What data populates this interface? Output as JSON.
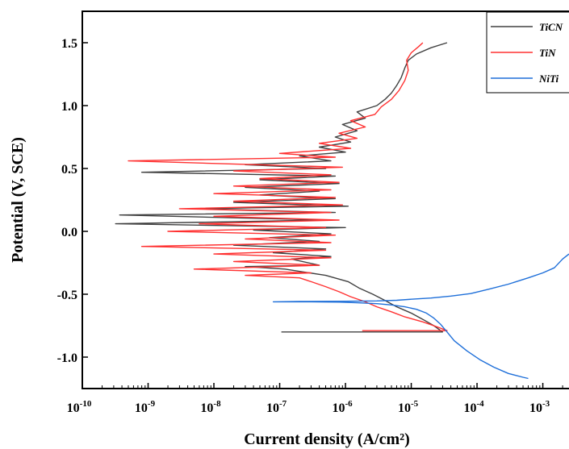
{
  "chart_data": {
    "type": "line",
    "xlabel": "Current density (A/cm²)",
    "ylabel": "Potential (V, SCE)",
    "x_scale": "log",
    "xlim": [
      1e-10,
      0.0025
    ],
    "ylim": [
      -1.25,
      1.75
    ],
    "x_ticks": [
      {
        "value": 1e-10,
        "label_base": "10",
        "label_exp": "-10"
      },
      {
        "value": 1e-09,
        "label_base": "10",
        "label_exp": "-9"
      },
      {
        "value": 1e-08,
        "label_base": "10",
        "label_exp": "-8"
      },
      {
        "value": 1e-07,
        "label_base": "10",
        "label_exp": "-7"
      },
      {
        "value": 1e-06,
        "label_base": "10",
        "label_exp": "-6"
      },
      {
        "value": 1e-05,
        "label_base": "10",
        "label_exp": "-5"
      },
      {
        "value": 0.0001,
        "label_base": "10",
        "label_exp": "-4"
      },
      {
        "value": 0.001,
        "label_base": "10",
        "label_exp": "-3"
      }
    ],
    "y_ticks": [
      {
        "value": -1.0,
        "label": "-1.0"
      },
      {
        "value": -0.5,
        "label": "-0.5"
      },
      {
        "value": 0.0,
        "label": "0.0"
      },
      {
        "value": 0.5,
        "label": "0.5"
      },
      {
        "value": 1.0,
        "label": "1.0"
      },
      {
        "value": 1.5,
        "label": "1.5"
      }
    ],
    "legend_position": "top-right",
    "grid": false,
    "series": [
      {
        "name": "TiCN",
        "color": "#404040",
        "points": [
          [
            1.06e-07,
            -0.8
          ],
          [
            1.8e-06,
            -0.8
          ],
          [
            3e-05,
            -0.8
          ],
          [
            2.2e-05,
            -0.75
          ],
          [
            1.5e-05,
            -0.7
          ],
          [
            1e-05,
            -0.65
          ],
          [
            6e-06,
            -0.6
          ],
          [
            4e-06,
            -0.55
          ],
          [
            2.6e-06,
            -0.5
          ],
          [
            1.6e-06,
            -0.45
          ],
          [
            1.1e-06,
            -0.4
          ],
          [
            5e-07,
            -0.35
          ],
          [
            1.2e-07,
            -0.3
          ],
          [
            3e-08,
            -0.28
          ],
          [
            4e-07,
            -0.27
          ],
          [
            1.5e-07,
            -0.22
          ],
          [
            6e-07,
            -0.2
          ],
          [
            8e-08,
            -0.17
          ],
          [
            5e-07,
            -0.14
          ],
          [
            2e-08,
            -0.11
          ],
          [
            4e-07,
            -0.08
          ],
          [
            7e-08,
            -0.05
          ],
          [
            6e-07,
            -0.02
          ],
          [
            4e-08,
            0.01
          ],
          [
            1e-06,
            0.03
          ],
          [
            3.2e-10,
            0.06
          ],
          [
            5e-07,
            0.09
          ],
          [
            3.7e-10,
            0.13
          ],
          [
            7e-07,
            0.15
          ],
          [
            6e-09,
            0.18
          ],
          [
            1.1e-06,
            0.2
          ],
          [
            2e-08,
            0.23
          ],
          [
            7e-07,
            0.26
          ],
          [
            5e-08,
            0.29
          ],
          [
            4e-07,
            0.32
          ],
          [
            3e-08,
            0.35
          ],
          [
            8e-07,
            0.38
          ],
          [
            5e-08,
            0.41
          ],
          [
            7e-07,
            0.44
          ],
          [
            8e-10,
            0.47
          ],
          [
            5e-07,
            0.5
          ],
          [
            3e-08,
            0.53
          ],
          [
            6e-07,
            0.56
          ],
          [
            2e-07,
            0.6
          ],
          [
            1e-06,
            0.63
          ],
          [
            4e-07,
            0.67
          ],
          [
            1.2e-06,
            0.71
          ],
          [
            7e-07,
            0.75
          ],
          [
            1.5e-06,
            0.8
          ],
          [
            9e-07,
            0.85
          ],
          [
            2e-06,
            0.9
          ],
          [
            1.5e-06,
            0.95
          ],
          [
            3e-06,
            1.0
          ],
          [
            4e-06,
            1.05
          ],
          [
            5e-06,
            1.1
          ],
          [
            6e-06,
            1.16
          ],
          [
            7e-06,
            1.22
          ],
          [
            8e-06,
            1.3
          ],
          [
            9e-06,
            1.36
          ],
          [
            1.2e-05,
            1.41
          ],
          [
            2e-05,
            1.46
          ],
          [
            3.5e-05,
            1.5
          ]
        ]
      },
      {
        "name": "TiN",
        "color": "#ff3030",
        "points": [
          [
            1.8e-06,
            -0.79
          ],
          [
            3.5e-05,
            -0.79
          ],
          [
            2.5e-05,
            -0.76
          ],
          [
            1.5e-05,
            -0.72
          ],
          [
            8e-06,
            -0.68
          ],
          [
            5e-06,
            -0.64
          ],
          [
            3e-06,
            -0.6
          ],
          [
            2e-06,
            -0.56
          ],
          [
            1.2e-06,
            -0.52
          ],
          [
            8e-07,
            -0.48
          ],
          [
            5e-07,
            -0.44
          ],
          [
            3e-07,
            -0.4
          ],
          [
            2e-07,
            -0.37
          ],
          [
            3e-08,
            -0.35
          ],
          [
            3e-07,
            -0.33
          ],
          [
            5e-09,
            -0.3
          ],
          [
            4e-07,
            -0.27
          ],
          [
            2e-08,
            -0.24
          ],
          [
            6e-07,
            -0.21
          ],
          [
            1e-08,
            -0.18
          ],
          [
            5e-07,
            -0.15
          ],
          [
            8e-10,
            -0.12
          ],
          [
            6e-07,
            -0.09
          ],
          [
            3e-08,
            -0.06
          ],
          [
            7e-07,
            -0.03
          ],
          [
            2e-09,
            0.0
          ],
          [
            5e-07,
            0.03
          ],
          [
            6e-09,
            0.06
          ],
          [
            8e-07,
            0.09
          ],
          [
            1e-08,
            0.12
          ],
          [
            6e-07,
            0.15
          ],
          [
            3e-09,
            0.18
          ],
          [
            9e-07,
            0.21
          ],
          [
            2e-08,
            0.24
          ],
          [
            7e-07,
            0.27
          ],
          [
            1e-08,
            0.3
          ],
          [
            6e-07,
            0.33
          ],
          [
            2e-08,
            0.36
          ],
          [
            8e-07,
            0.39
          ],
          [
            5e-08,
            0.42
          ],
          [
            6e-07,
            0.45
          ],
          [
            2e-08,
            0.48
          ],
          [
            9e-07,
            0.51
          ],
          [
            5e-10,
            0.56
          ],
          [
            7e-07,
            0.59
          ],
          [
            1e-07,
            0.62
          ],
          [
            1.2e-06,
            0.66
          ],
          [
            4e-07,
            0.7
          ],
          [
            1.5e-06,
            0.74
          ],
          [
            8e-07,
            0.78
          ],
          [
            2e-06,
            0.83
          ],
          [
            1.2e-06,
            0.88
          ],
          [
            2.8e-06,
            0.93
          ],
          [
            3.5e-06,
            0.99
          ],
          [
            5e-06,
            1.05
          ],
          [
            6.5e-06,
            1.12
          ],
          [
            8e-06,
            1.2
          ],
          [
            9e-06,
            1.28
          ],
          [
            8.5e-06,
            1.36
          ],
          [
            1e-05,
            1.42
          ],
          [
            1.3e-05,
            1.47
          ],
          [
            1.5e-05,
            1.5
          ]
        ]
      },
      {
        "name": "NiTi",
        "color": "#1e6fd9",
        "points": [
          [
            0.0006,
            -1.17
          ],
          [
            0.0005,
            -1.16
          ],
          [
            0.0003,
            -1.13
          ],
          [
            0.00018,
            -1.08
          ],
          [
            0.00011,
            -1.02
          ],
          [
            7e-05,
            -0.95
          ],
          [
            4.5e-05,
            -0.87
          ],
          [
            3.5e-05,
            -0.8
          ],
          [
            2.8e-05,
            -0.74
          ],
          [
            2.2e-05,
            -0.69
          ],
          [
            1.7e-05,
            -0.65
          ],
          [
            1.2e-05,
            -0.62
          ],
          [
            8e-06,
            -0.6
          ],
          [
            5e-06,
            -0.585
          ],
          [
            3e-06,
            -0.575
          ],
          [
            1.5e-06,
            -0.568
          ],
          [
            8e-07,
            -0.563
          ],
          [
            3e-07,
            -0.56
          ],
          [
            1e-07,
            -0.56
          ],
          [
            8e-08,
            -0.56
          ],
          [
            2e-07,
            -0.558
          ],
          [
            1e-06,
            -0.556
          ],
          [
            3e-06,
            -0.553
          ],
          [
            6e-06,
            -0.548
          ],
          [
            1e-05,
            -0.54
          ],
          [
            2e-05,
            -0.53
          ],
          [
            4e-05,
            -0.515
          ],
          [
            8e-05,
            -0.495
          ],
          [
            0.00015,
            -0.46
          ],
          [
            0.0003,
            -0.42
          ],
          [
            0.0006,
            -0.37
          ],
          [
            0.001,
            -0.33
          ],
          [
            0.0015,
            -0.29
          ],
          [
            0.002,
            -0.22
          ],
          [
            0.0025,
            -0.18
          ]
        ]
      }
    ]
  }
}
